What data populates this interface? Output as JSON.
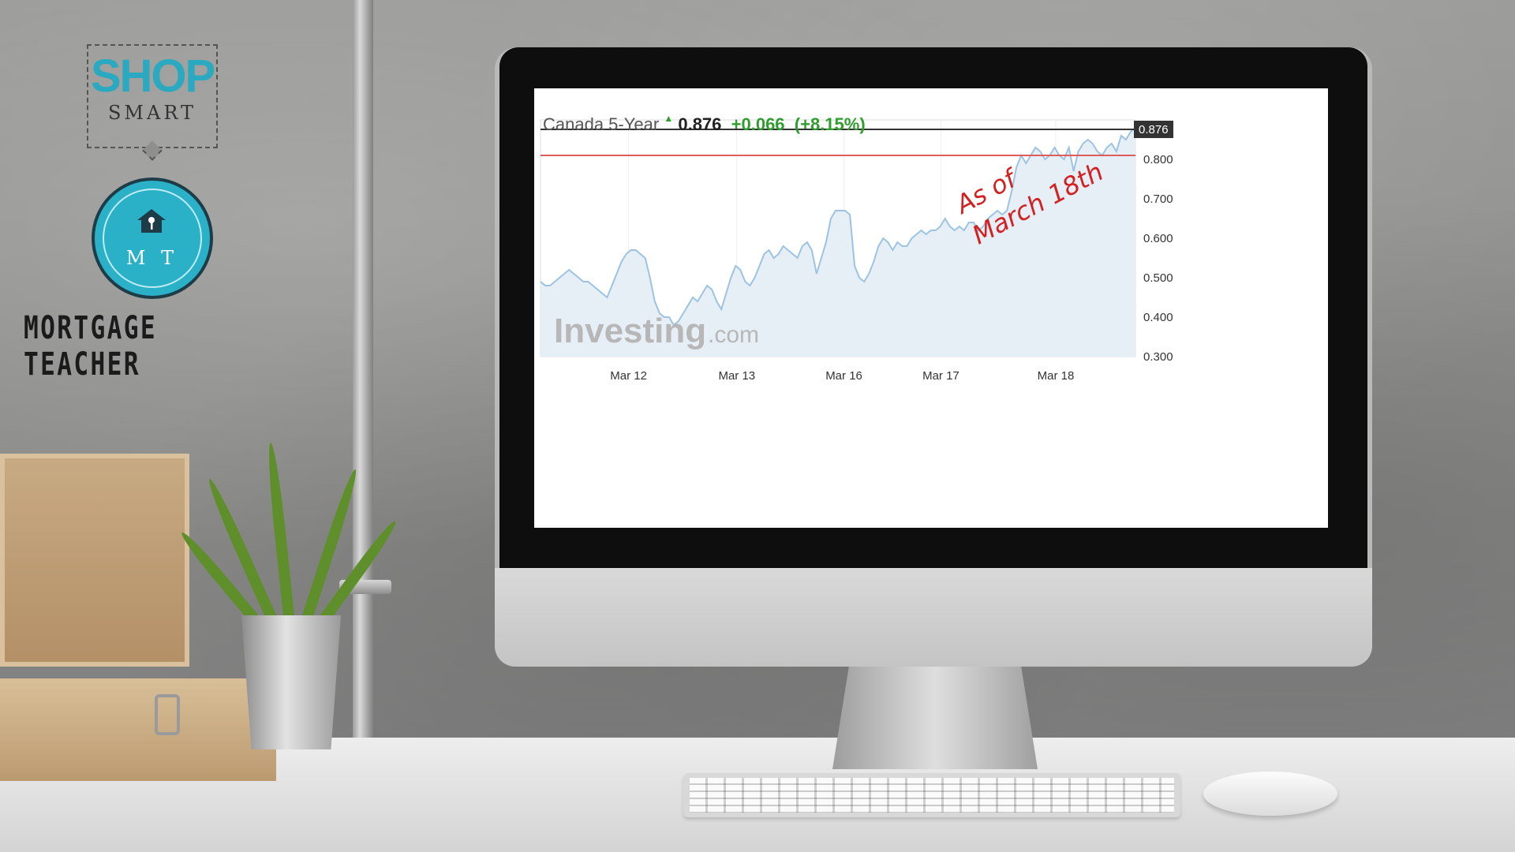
{
  "brand": {
    "shop_big": "SHOP",
    "shop_small": "SMART",
    "badge_letters": "M T",
    "name": "MORTGAGE TEACHER",
    "accent_color": "#2ab1c8"
  },
  "quote": {
    "name": "Canada 5-Year",
    "price": "0.876",
    "change": "+0.066",
    "change_pct": "(+8.15%)",
    "direction_icon": "up-arrow-icon",
    "up_color": "#2f9e2f"
  },
  "chart_data": {
    "type": "area",
    "title": "",
    "xlabel": "",
    "ylabel": "",
    "x_tick_labels": [
      "Mar 12",
      "Mar 13",
      "Mar 16",
      "Mar 17",
      "Mar 18"
    ],
    "y_ticks": [
      "0.300",
      "0.400",
      "0.500",
      "0.600",
      "0.700",
      "0.800"
    ],
    "ylim": [
      0.3,
      0.9
    ],
    "last_value_label": "0.876",
    "reference_lines": [
      {
        "value": 0.876,
        "color": "#333333"
      },
      {
        "value": 0.81,
        "color": "#e05b5b"
      }
    ],
    "series": [
      {
        "color": "#9cc4e2",
        "fill": "#e6eef6",
        "values": [
          0.49,
          0.48,
          0.48,
          0.49,
          0.5,
          0.51,
          0.52,
          0.51,
          0.5,
          0.49,
          0.49,
          0.48,
          0.47,
          0.46,
          0.45,
          0.48,
          0.51,
          0.54,
          0.56,
          0.57,
          0.57,
          0.56,
          0.55,
          0.5,
          0.44,
          0.41,
          0.4,
          0.4,
          0.38,
          0.39,
          0.41,
          0.43,
          0.45,
          0.44,
          0.46,
          0.48,
          0.47,
          0.44,
          0.42,
          0.46,
          0.5,
          0.53,
          0.52,
          0.49,
          0.48,
          0.5,
          0.53,
          0.56,
          0.57,
          0.55,
          0.56,
          0.58,
          0.57,
          0.56,
          0.55,
          0.58,
          0.59,
          0.57,
          0.51,
          0.55,
          0.59,
          0.65,
          0.67,
          0.67,
          0.67,
          0.66,
          0.53,
          0.5,
          0.49,
          0.51,
          0.54,
          0.58,
          0.6,
          0.59,
          0.57,
          0.59,
          0.58,
          0.58,
          0.6,
          0.61,
          0.62,
          0.61,
          0.62,
          0.62,
          0.63,
          0.65,
          0.63,
          0.62,
          0.63,
          0.62,
          0.64,
          0.64,
          0.62,
          0.63,
          0.65,
          0.66,
          0.67,
          0.66,
          0.67,
          0.72,
          0.78,
          0.81,
          0.79,
          0.81,
          0.83,
          0.82,
          0.8,
          0.81,
          0.83,
          0.81,
          0.8,
          0.83,
          0.77,
          0.82,
          0.84,
          0.85,
          0.84,
          0.82,
          0.81,
          0.83,
          0.84,
          0.82,
          0.86,
          0.85,
          0.87,
          0.88
        ]
      }
    ],
    "annotation": {
      "line1": "As of",
      "line2": "March 18th",
      "color": "#d32020"
    },
    "watermark": {
      "main": "Investing",
      "suffix": ".com"
    }
  }
}
